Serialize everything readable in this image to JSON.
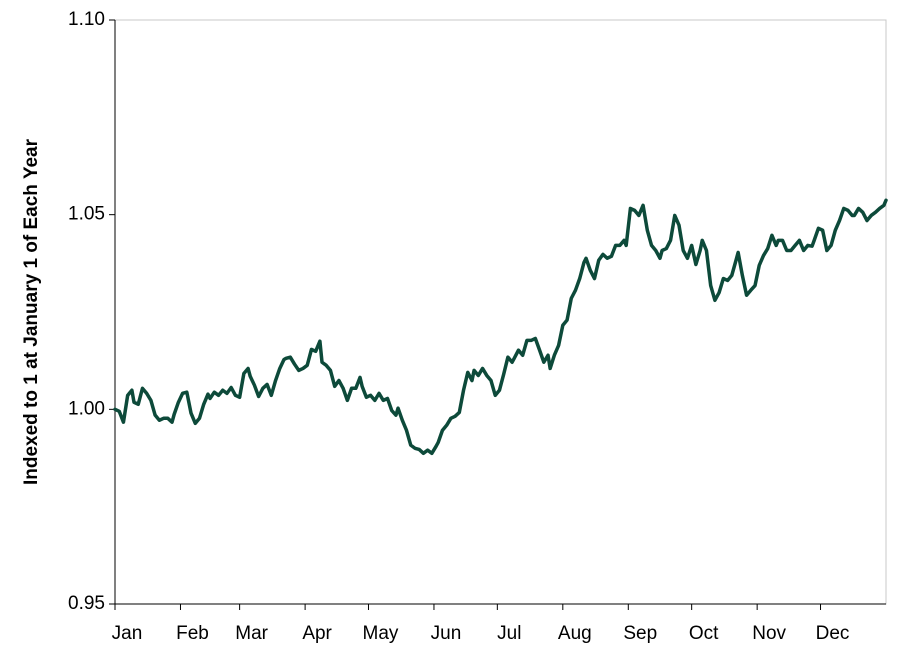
{
  "chart_data": {
    "type": "line",
    "y_label": "Indexed to 1 at January 1 of Each Year",
    "xlim": [
      0,
      365
    ],
    "xticks": [
      {
        "value": 0,
        "label": "Jan"
      },
      {
        "value": 31,
        "label": "Feb"
      },
      {
        "value": 59,
        "label": "Mar"
      },
      {
        "value": 90,
        "label": "Apr"
      },
      {
        "value": 120,
        "label": "May"
      },
      {
        "value": 151,
        "label": "Jun"
      },
      {
        "value": 181,
        "label": "Jul"
      },
      {
        "value": 212,
        "label": "Aug"
      },
      {
        "value": 243,
        "label": "Sep"
      },
      {
        "value": 273,
        "label": "Oct"
      },
      {
        "value": 304,
        "label": "Nov"
      },
      {
        "value": 334,
        "label": "Dec"
      }
    ],
    "ylim": [
      0.95,
      1.1
    ],
    "yticks": [
      {
        "value": 0.95,
        "label": "0.95"
      },
      {
        "value": 1,
        "label": "1.00"
      },
      {
        "value": 1.05,
        "label": "1.05"
      },
      {
        "value": 1.1,
        "label": "1.10"
      }
    ],
    "grid": false,
    "x": [
      0,
      2,
      4,
      6,
      8,
      9,
      11,
      13,
      15,
      17,
      19,
      21,
      23,
      25,
      27,
      28,
      30,
      32,
      34,
      36,
      38,
      40,
      42,
      44,
      45,
      47,
      49,
      51,
      53,
      55,
      57,
      59,
      61,
      63,
      64,
      66,
      68,
      70,
      72,
      74,
      76,
      78,
      80,
      81,
      83,
      85,
      87,
      89,
      91,
      93,
      95,
      97,
      98,
      100,
      102,
      104,
      106,
      108,
      110,
      112,
      114,
      116,
      117,
      119,
      121,
      123,
      125,
      127,
      129,
      131,
      133,
      134,
      136,
      138,
      140,
      142,
      144,
      146,
      148,
      150,
      152,
      153,
      155,
      157,
      159,
      161,
      163,
      165,
      167,
      169,
      170,
      172,
      174,
      176,
      178,
      180,
      182,
      184,
      186,
      188,
      189,
      191,
      193,
      195,
      197,
      199,
      201,
      203,
      205,
      206,
      208,
      210,
      212,
      214,
      216,
      218,
      220,
      222,
      223,
      225,
      227,
      229,
      231,
      233,
      235,
      237,
      239,
      241,
      242,
      244,
      246,
      248,
      250,
      252,
      254,
      256,
      258,
      259,
      261,
      263,
      265,
      267,
      269,
      271,
      273,
      275,
      277,
      278,
      280,
      282,
      284,
      286,
      288,
      290,
      292,
      294,
      295,
      297,
      299,
      301,
      303,
      305,
      307,
      309,
      311,
      313,
      314,
      316,
      318,
      320,
      322,
      324,
      326,
      328,
      330,
      331,
      333,
      335,
      337,
      339,
      341,
      343,
      345,
      347,
      349,
      350,
      352,
      354,
      356,
      358,
      360,
      362,
      364,
      365
    ],
    "series": [
      {
        "color": "#0d4a3a",
        "values": [
          1.0,
          0.9995,
          0.9967,
          1.0036,
          1.0049,
          1.0018,
          1.0013,
          1.0054,
          1.0041,
          1.0023,
          0.9985,
          0.9972,
          0.9977,
          0.9977,
          0.9967,
          0.9987,
          1.0018,
          1.0041,
          1.0044,
          0.999,
          0.9964,
          0.9977,
          1.0013,
          1.0039,
          1.0028,
          1.0044,
          1.0036,
          1.0049,
          1.0041,
          1.0056,
          1.0036,
          1.0031,
          1.0092,
          1.0105,
          1.0085,
          1.0062,
          1.0033,
          1.0054,
          1.0064,
          1.0036,
          1.0074,
          1.0105,
          1.0128,
          1.0131,
          1.0134,
          1.0116,
          1.01,
          1.0105,
          1.0113,
          1.0154,
          1.0149,
          1.0175,
          1.0121,
          1.0113,
          1.01,
          1.0059,
          1.0074,
          1.0054,
          1.0023,
          1.0054,
          1.0054,
          1.0082,
          1.0059,
          1.0031,
          1.0036,
          1.0023,
          1.0041,
          1.0023,
          1.0028,
          0.9997,
          0.9985,
          1.0003,
          0.9972,
          0.9946,
          0.9908,
          0.99,
          0.9897,
          0.9887,
          0.9895,
          0.9887,
          0.9905,
          0.9915,
          0.9946,
          0.9959,
          0.9977,
          0.9982,
          0.9992,
          1.0049,
          1.0095,
          1.0074,
          1.01,
          1.0087,
          1.0105,
          1.0087,
          1.0074,
          1.0036,
          1.0049,
          1.009,
          1.0134,
          1.0121,
          1.0131,
          1.0152,
          1.0139,
          1.0177,
          1.0177,
          1.0182,
          1.0152,
          1.0121,
          1.0139,
          1.0105,
          1.0139,
          1.0164,
          1.0216,
          1.0229,
          1.0285,
          1.0306,
          1.0336,
          1.0377,
          1.0388,
          1.0357,
          1.0336,
          1.0383,
          1.0398,
          1.0388,
          1.0393,
          1.0421,
          1.0421,
          1.0434,
          1.0421,
          1.0516,
          1.0511,
          1.0498,
          1.0524,
          1.046,
          1.0421,
          1.0408,
          1.0388,
          1.0408,
          1.0413,
          1.0434,
          1.0498,
          1.0473,
          1.0408,
          1.0388,
          1.0421,
          1.0372,
          1.0408,
          1.0434,
          1.0408,
          1.0318,
          1.028,
          1.03,
          1.0336,
          1.0331,
          1.0344,
          1.0383,
          1.0403,
          1.0344,
          1.0293,
          1.0306,
          1.0318,
          1.037,
          1.0395,
          1.0413,
          1.0447,
          1.0421,
          1.0434,
          1.0434,
          1.0408,
          1.0408,
          1.0421,
          1.0434,
          1.0408,
          1.0421,
          1.0419,
          1.0434,
          1.0465,
          1.046,
          1.0408,
          1.0421,
          1.046,
          1.0485,
          1.0516,
          1.0511,
          1.0498,
          1.0498,
          1.0516,
          1.0506,
          1.0485,
          1.0498,
          1.0506,
          1.0516,
          1.0524,
          1.0537
        ]
      }
    ]
  }
}
